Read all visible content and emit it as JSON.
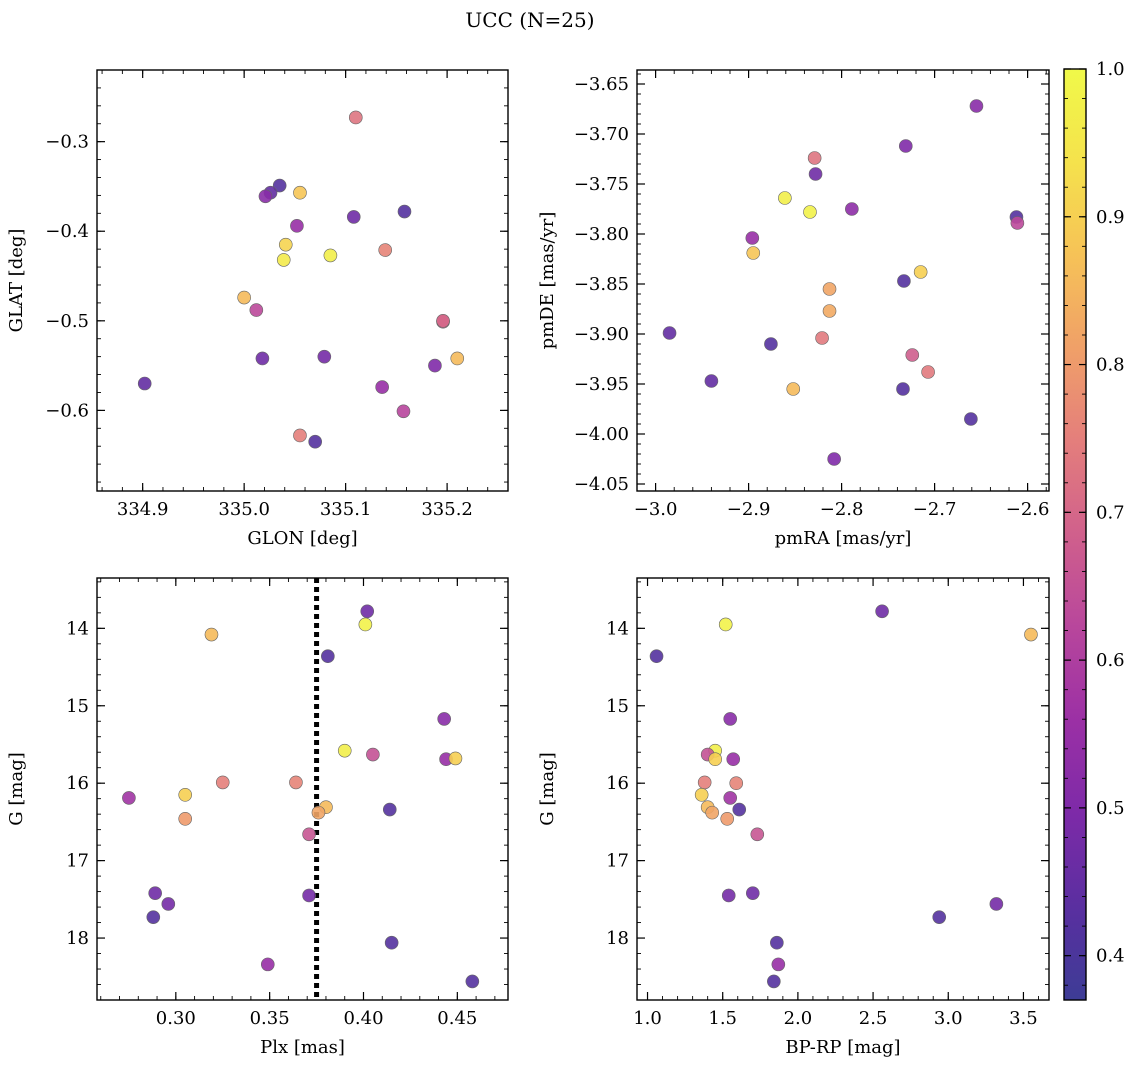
{
  "figure": {
    "title": "UCC (N=25)"
  },
  "colormap": {
    "name": "plasma",
    "range": [
      0.37,
      1.0
    ],
    "ticks": [
      0.4,
      0.5,
      0.6,
      0.7,
      0.8,
      0.9,
      1.0
    ],
    "tick_labels": [
      "0.4",
      "0.5",
      "0.6",
      "0.7",
      "0.8",
      "0.9",
      "1.0"
    ],
    "stops": [
      "#3d3c96",
      "#5a2fa0",
      "#7d2aa8",
      "#9b30a5",
      "#b8469c",
      "#d0608c",
      "#e47e7c",
      "#f0a068",
      "#f6c257",
      "#f5e24c",
      "#f0f949"
    ]
  },
  "chart_data": [
    {
      "type": "scatter",
      "name": "glon-glat",
      "xlabel": "GLON [deg]",
      "ylabel": "GLAT [deg]",
      "xlim": [
        334.855,
        335.26
      ],
      "ylim": [
        -0.69,
        -0.22
      ],
      "y_inverted": false,
      "xticks": [
        334.9,
        335.0,
        335.1,
        335.2
      ],
      "xtick_labels": [
        "334.9",
        "335.0",
        "335.1",
        "335.2"
      ],
      "yticks": [
        -0.3,
        -0.4,
        -0.5,
        -0.6
      ],
      "ytick_labels": [
        "−0.3",
        "−0.4",
        "−0.5",
        "−0.6"
      ],
      "xminor": 0.02,
      "yminor": 0.02,
      "points": [
        {
          "x": 335.11,
          "y": -0.273,
          "c": 0.73
        },
        {
          "x": 335.035,
          "y": -0.349,
          "c": 0.42
        },
        {
          "x": 335.026,
          "y": -0.357,
          "c": 0.45
        },
        {
          "x": 335.021,
          "y": -0.361,
          "c": 0.52
        },
        {
          "x": 335.055,
          "y": -0.357,
          "c": 0.88
        },
        {
          "x": 335.158,
          "y": -0.378,
          "c": 0.42
        },
        {
          "x": 335.108,
          "y": -0.384,
          "c": 0.47
        },
        {
          "x": 335.052,
          "y": -0.394,
          "c": 0.55
        },
        {
          "x": 335.041,
          "y": -0.415,
          "c": 0.91
        },
        {
          "x": 335.039,
          "y": -0.432,
          "c": 0.96
        },
        {
          "x": 335.085,
          "y": -0.427,
          "c": 0.97
        },
        {
          "x": 335.139,
          "y": -0.421,
          "c": 0.76
        },
        {
          "x": 335.0,
          "y": -0.474,
          "c": 0.86
        },
        {
          "x": 335.012,
          "y": -0.488,
          "c": 0.63
        },
        {
          "x": 335.196,
          "y": -0.501,
          "c": 0.68
        },
        {
          "x": 335.018,
          "y": -0.542,
          "c": 0.47
        },
        {
          "x": 335.079,
          "y": -0.54,
          "c": 0.48
        },
        {
          "x": 335.21,
          "y": -0.542,
          "c": 0.86
        },
        {
          "x": 334.902,
          "y": -0.57,
          "c": 0.45
        },
        {
          "x": 335.188,
          "y": -0.55,
          "c": 0.5
        },
        {
          "x": 335.136,
          "y": -0.574,
          "c": 0.55
        },
        {
          "x": 335.157,
          "y": -0.601,
          "c": 0.62
        },
        {
          "x": 335.055,
          "y": -0.628,
          "c": 0.75
        },
        {
          "x": 335.07,
          "y": -0.635,
          "c": 0.42
        },
        {
          "x": 335.196,
          "y": -0.5,
          "c": 0.7
        }
      ]
    },
    {
      "type": "scatter",
      "name": "pmra-pmde",
      "xlabel": "pmRA [mas/yr]",
      "ylabel": "pmDE [mas/yr]",
      "xlim": [
        -3.02,
        -2.577
      ],
      "ylim": [
        -4.057,
        -3.636
      ],
      "y_inverted": false,
      "xticks": [
        -3.0,
        -2.9,
        -2.8,
        -2.7,
        -2.6
      ],
      "xtick_labels": [
        "−3.0",
        "−2.9",
        "−2.8",
        "−2.7",
        "−2.6"
      ],
      "yticks": [
        -3.65,
        -3.7,
        -3.75,
        -3.8,
        -3.85,
        -3.9,
        -3.95,
        -4.0,
        -4.05
      ],
      "ytick_labels": [
        "−3.65",
        "−3.70",
        "−3.75",
        "−3.80",
        "−3.85",
        "−3.90",
        "−3.95",
        "−4.00",
        "−4.05"
      ],
      "xminor": 0.02,
      "yminor": 0.01,
      "points": [
        {
          "x": -2.655,
          "y": -3.672,
          "c": 0.52
        },
        {
          "x": -2.731,
          "y": -3.712,
          "c": 0.5
        },
        {
          "x": -2.829,
          "y": -3.724,
          "c": 0.73
        },
        {
          "x": -2.828,
          "y": -3.74,
          "c": 0.47
        },
        {
          "x": -2.861,
          "y": -3.764,
          "c": 0.97
        },
        {
          "x": -2.834,
          "y": -3.778,
          "c": 0.98
        },
        {
          "x": -2.789,
          "y": -3.775,
          "c": 0.53
        },
        {
          "x": -2.612,
          "y": -3.783,
          "c": 0.42
        },
        {
          "x": -2.611,
          "y": -3.789,
          "c": 0.63
        },
        {
          "x": -2.896,
          "y": -3.804,
          "c": 0.55
        },
        {
          "x": -2.895,
          "y": -3.819,
          "c": 0.88
        },
        {
          "x": -2.715,
          "y": -3.838,
          "c": 0.9
        },
        {
          "x": -2.733,
          "y": -3.847,
          "c": 0.42
        },
        {
          "x": -2.813,
          "y": -3.855,
          "c": 0.82
        },
        {
          "x": -2.813,
          "y": -3.877,
          "c": 0.83
        },
        {
          "x": -2.985,
          "y": -3.899,
          "c": 0.45
        },
        {
          "x": -2.821,
          "y": -3.904,
          "c": 0.74
        },
        {
          "x": -2.876,
          "y": -3.91,
          "c": 0.42
        },
        {
          "x": -2.724,
          "y": -3.921,
          "c": 0.68
        },
        {
          "x": -2.707,
          "y": -3.938,
          "c": 0.74
        },
        {
          "x": -2.94,
          "y": -3.947,
          "c": 0.45
        },
        {
          "x": -2.852,
          "y": -3.955,
          "c": 0.86
        },
        {
          "x": -2.734,
          "y": -3.955,
          "c": 0.42
        },
        {
          "x": -2.661,
          "y": -3.985,
          "c": 0.42
        },
        {
          "x": -2.808,
          "y": -4.025,
          "c": 0.5
        }
      ]
    },
    {
      "type": "scatter",
      "name": "plx-g",
      "xlabel": "Plx [mas]",
      "ylabel": "G [mag]",
      "xlim": [
        0.258,
        0.477
      ],
      "ylim": [
        13.35,
        18.8
      ],
      "y_inverted": true,
      "xticks": [
        0.3,
        0.35,
        0.4,
        0.45
      ],
      "xtick_labels": [
        "0.30",
        "0.35",
        "0.40",
        "0.45"
      ],
      "yticks": [
        14,
        15,
        16,
        17,
        18
      ],
      "ytick_labels": [
        "14",
        "15",
        "16",
        "17",
        "18"
      ],
      "xminor": 0.01,
      "yminor": 0.2,
      "vline": {
        "x": 0.375
      },
      "points": [
        {
          "x": 0.402,
          "y": 13.78,
          "c": 0.47
        },
        {
          "x": 0.401,
          "y": 13.95,
          "c": 0.98
        },
        {
          "x": 0.319,
          "y": 14.08,
          "c": 0.86
        },
        {
          "x": 0.381,
          "y": 14.36,
          "c": 0.42
        },
        {
          "x": 0.443,
          "y": 15.17,
          "c": 0.52
        },
        {
          "x": 0.39,
          "y": 15.58,
          "c": 0.97
        },
        {
          "x": 0.405,
          "y": 15.63,
          "c": 0.65
        },
        {
          "x": 0.444,
          "y": 15.69,
          "c": 0.55
        },
        {
          "x": 0.449,
          "y": 15.68,
          "c": 0.9
        },
        {
          "x": 0.325,
          "y": 15.99,
          "c": 0.75
        },
        {
          "x": 0.364,
          "y": 15.99,
          "c": 0.76
        },
        {
          "x": 0.275,
          "y": 16.19,
          "c": 0.57
        },
        {
          "x": 0.305,
          "y": 16.15,
          "c": 0.9
        },
        {
          "x": 0.305,
          "y": 16.46,
          "c": 0.8
        },
        {
          "x": 0.38,
          "y": 16.31,
          "c": 0.86
        },
        {
          "x": 0.376,
          "y": 16.38,
          "c": 0.82
        },
        {
          "x": 0.414,
          "y": 16.34,
          "c": 0.42
        },
        {
          "x": 0.371,
          "y": 16.66,
          "c": 0.66
        },
        {
          "x": 0.289,
          "y": 17.42,
          "c": 0.47
        },
        {
          "x": 0.371,
          "y": 17.45,
          "c": 0.48
        },
        {
          "x": 0.296,
          "y": 17.56,
          "c": 0.48
        },
        {
          "x": 0.288,
          "y": 17.73,
          "c": 0.42
        },
        {
          "x": 0.415,
          "y": 18.06,
          "c": 0.42
        },
        {
          "x": 0.349,
          "y": 18.34,
          "c": 0.55
        },
        {
          "x": 0.458,
          "y": 18.56,
          "c": 0.42
        }
      ]
    },
    {
      "type": "scatter",
      "name": "bprp-g",
      "xlabel": "BP-RP [mag]",
      "ylabel": "G [mag]",
      "xlim": [
        0.93,
        3.67
      ],
      "ylim": [
        13.35,
        18.8
      ],
      "y_inverted": true,
      "xticks": [
        1.0,
        1.5,
        2.0,
        2.5,
        3.0,
        3.5
      ],
      "xtick_labels": [
        "1.0",
        "1.5",
        "2.0",
        "2.5",
        "3.0",
        "3.5"
      ],
      "yticks": [
        14,
        15,
        16,
        17,
        18
      ],
      "ytick_labels": [
        "14",
        "15",
        "16",
        "17",
        "18"
      ],
      "xminor": 0.1,
      "yminor": 0.2,
      "points": [
        {
          "x": 2.56,
          "y": 13.78,
          "c": 0.47
        },
        {
          "x": 1.52,
          "y": 13.95,
          "c": 0.98
        },
        {
          "x": 3.55,
          "y": 14.08,
          "c": 0.86
        },
        {
          "x": 1.06,
          "y": 14.36,
          "c": 0.42
        },
        {
          "x": 1.55,
          "y": 15.17,
          "c": 0.52
        },
        {
          "x": 1.45,
          "y": 15.58,
          "c": 0.97
        },
        {
          "x": 1.4,
          "y": 15.63,
          "c": 0.65
        },
        {
          "x": 1.45,
          "y": 15.69,
          "c": 0.9
        },
        {
          "x": 1.57,
          "y": 15.69,
          "c": 0.55
        },
        {
          "x": 1.38,
          "y": 15.99,
          "c": 0.75
        },
        {
          "x": 1.59,
          "y": 16.0,
          "c": 0.76
        },
        {
          "x": 1.36,
          "y": 16.15,
          "c": 0.9
        },
        {
          "x": 1.55,
          "y": 16.19,
          "c": 0.57
        },
        {
          "x": 1.4,
          "y": 16.31,
          "c": 0.86
        },
        {
          "x": 1.61,
          "y": 16.34,
          "c": 0.42
        },
        {
          "x": 1.43,
          "y": 16.38,
          "c": 0.82
        },
        {
          "x": 1.53,
          "y": 16.46,
          "c": 0.8
        },
        {
          "x": 1.73,
          "y": 16.66,
          "c": 0.66
        },
        {
          "x": 1.7,
          "y": 17.42,
          "c": 0.47
        },
        {
          "x": 1.54,
          "y": 17.45,
          "c": 0.48
        },
        {
          "x": 3.32,
          "y": 17.56,
          "c": 0.48
        },
        {
          "x": 2.94,
          "y": 17.73,
          "c": 0.42
        },
        {
          "x": 1.86,
          "y": 18.06,
          "c": 0.42
        },
        {
          "x": 1.87,
          "y": 18.34,
          "c": 0.55
        },
        {
          "x": 1.84,
          "y": 18.56,
          "c": 0.42
        }
      ]
    }
  ]
}
